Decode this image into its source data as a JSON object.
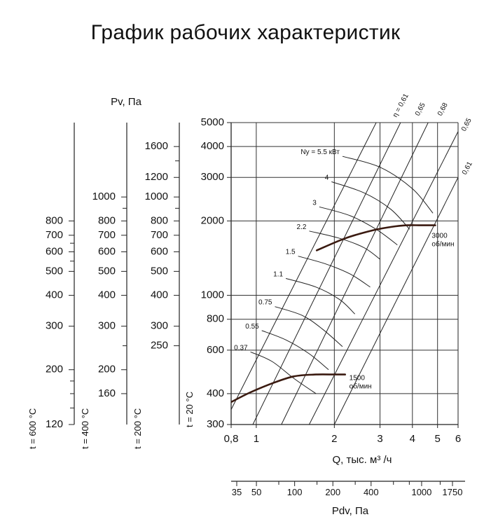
{
  "title": "График рабочих характеристик",
  "chart_data": {
    "type": "line",
    "title": "График рабочих характеристик",
    "x_axis": {
      "label": "Q, тыс. м³ /ч",
      "scale": "log",
      "range": [
        0.8,
        6
      ],
      "ticks": [
        {
          "v": 0.8,
          "label": "0,8"
        },
        {
          "v": 1,
          "label": "1"
        },
        {
          "v": 2,
          "label": "2"
        },
        {
          "v": 3,
          "label": "3"
        },
        {
          "v": 4,
          "label": "4"
        },
        {
          "v": 5,
          "label": "5"
        },
        {
          "v": 6,
          "label": "6"
        }
      ],
      "vertical_gridlines": [
        1,
        2,
        3,
        4,
        5
      ]
    },
    "y_axis": {
      "label": "t = 20 °C",
      "scale": "log",
      "range": [
        300,
        5000
      ],
      "ticks": [
        300,
        400,
        600,
        800,
        1000,
        2000,
        3000,
        4000,
        5000
      ],
      "tick_labels": [
        "300",
        "400",
        "600",
        "800",
        "1000",
        "2000",
        "3000",
        "4000",
        "5000"
      ]
    },
    "pv_header": "Pv, Па",
    "pressure_scales": [
      {
        "label": "t = 600 °C",
        "labels": [
          {
            "v": 120,
            "label": "120"
          },
          {
            "v": 200,
            "label": "200"
          },
          {
            "v": 300,
            "label": "300"
          },
          {
            "v": 400,
            "label": "400"
          },
          {
            "v": 500,
            "label": "500"
          },
          {
            "v": 600,
            "label": "600"
          },
          {
            "v": 700,
            "label": "700"
          },
          {
            "v": 800,
            "label": "800"
          }
        ],
        "minor": [
          140,
          160,
          180,
          550,
          650
        ]
      },
      {
        "label": "t = 400 °C",
        "labels": [
          {
            "v": 160,
            "label": "160"
          },
          {
            "v": 200,
            "label": "200"
          },
          {
            "v": 300,
            "label": "300"
          },
          {
            "v": 400,
            "label": "400"
          },
          {
            "v": 500,
            "label": "500"
          },
          {
            "v": 600,
            "label": "600"
          },
          {
            "v": 700,
            "label": "700"
          },
          {
            "v": 800,
            "label": "800"
          },
          {
            "v": 1000,
            "label": "1000"
          }
        ],
        "minor": [
          250,
          900
        ]
      },
      {
        "label": "t = 200 °C",
        "labels": [
          {
            "v": 250,
            "label": "250"
          },
          {
            "v": 300,
            "label": "300"
          },
          {
            "v": 400,
            "label": "400"
          },
          {
            "v": 500,
            "label": "500"
          },
          {
            "v": 600,
            "label": "600"
          },
          {
            "v": 700,
            "label": "700"
          },
          {
            "v": 800,
            "label": "800"
          },
          {
            "v": 1000,
            "label": "1000"
          },
          {
            "v": 1200,
            "label": "1200"
          },
          {
            "v": 1600,
            "label": "1600"
          }
        ],
        "minor": [
          900,
          1400
        ]
      }
    ],
    "pdv_axis": {
      "label": "Pdv, Па",
      "labels": [
        {
          "v": 35,
          "label": "35"
        },
        {
          "v": 50,
          "label": "50"
        },
        {
          "v": 100,
          "label": "100"
        },
        {
          "v": 200,
          "label": "200"
        },
        {
          "v": 400,
          "label": "400"
        },
        {
          "v": 1000,
          "label": "1000"
        },
        {
          "v": 1750,
          "label": "1750"
        }
      ],
      "minor": [
        75,
        150,
        300,
        600,
        800,
        1400
      ]
    },
    "series": [
      {
        "name": "3000 об/мин",
        "x": [
          1.71,
          2.2,
          2.8,
          3.3,
          3.8,
          4.3,
          4.9
        ],
        "y": [
          1520,
          1700,
          1830,
          1890,
          1920,
          1920,
          1920
        ]
      },
      {
        "name": "1500 об/мин",
        "x": [
          0.8,
          0.95,
          1.15,
          1.4,
          1.7,
          2.0,
          2.2
        ],
        "y": [
          370,
          405,
          440,
          470,
          478,
          478,
          478
        ]
      }
    ],
    "efficiency_lines": [
      {
        "label": "η = 0,61",
        "x": [
          0.8,
          2.9
        ],
        "y": [
          345,
          5000
        ]
      },
      {
        "label": "0,65",
        "x": [
          0.97,
          3.6
        ],
        "y": [
          300,
          5000
        ]
      },
      {
        "label": "0,68",
        "x": [
          1.25,
          4.6
        ],
        "y": [
          300,
          5000
        ]
      },
      {
        "label": "0,65",
        "x": [
          1.6,
          6.0
        ],
        "y": [
          300,
          4600
        ]
      },
      {
        "label": "0,61",
        "x": [
          2.0,
          6.0
        ],
        "y": [
          300,
          3000
        ]
      }
    ],
    "power_curves": [
      {
        "label": "Nу = 5.5 кВт",
        "x": [
          2.15,
          3.0,
          4.0,
          4.8
        ],
        "y": [
          3650,
          3300,
          2700,
          2150
        ]
      },
      {
        "label": "4",
        "x": [
          1.95,
          2.6,
          3.3,
          3.9
        ],
        "y": [
          2880,
          2600,
          2230,
          1850
        ]
      },
      {
        "label": "3",
        "x": [
          1.75,
          2.3,
          2.9,
          3.5
        ],
        "y": [
          2280,
          2100,
          1850,
          1600
        ]
      },
      {
        "label": "2.2",
        "x": [
          1.6,
          2.1,
          2.6,
          3.0
        ],
        "y": [
          1820,
          1700,
          1560,
          1400
        ]
      },
      {
        "label": "1.5",
        "x": [
          1.45,
          1.85,
          2.3,
          2.75
        ],
        "y": [
          1440,
          1340,
          1220,
          1080
        ]
      },
      {
        "label": "1.1",
        "x": [
          1.3,
          1.7,
          2.1,
          2.4
        ],
        "y": [
          1170,
          1080,
          960,
          840
        ]
      },
      {
        "label": "0.75",
        "x": [
          1.18,
          1.5,
          1.8,
          2.15
        ],
        "y": [
          900,
          830,
          730,
          620
        ]
      },
      {
        "label": "0.55",
        "x": [
          1.05,
          1.3,
          1.6,
          1.9
        ],
        "y": [
          720,
          660,
          580,
          500
        ]
      },
      {
        "label": "0.37",
        "x": [
          0.95,
          1.15,
          1.4,
          1.7
        ],
        "y": [
          590,
          540,
          460,
          400
        ]
      }
    ],
    "grid": true
  }
}
